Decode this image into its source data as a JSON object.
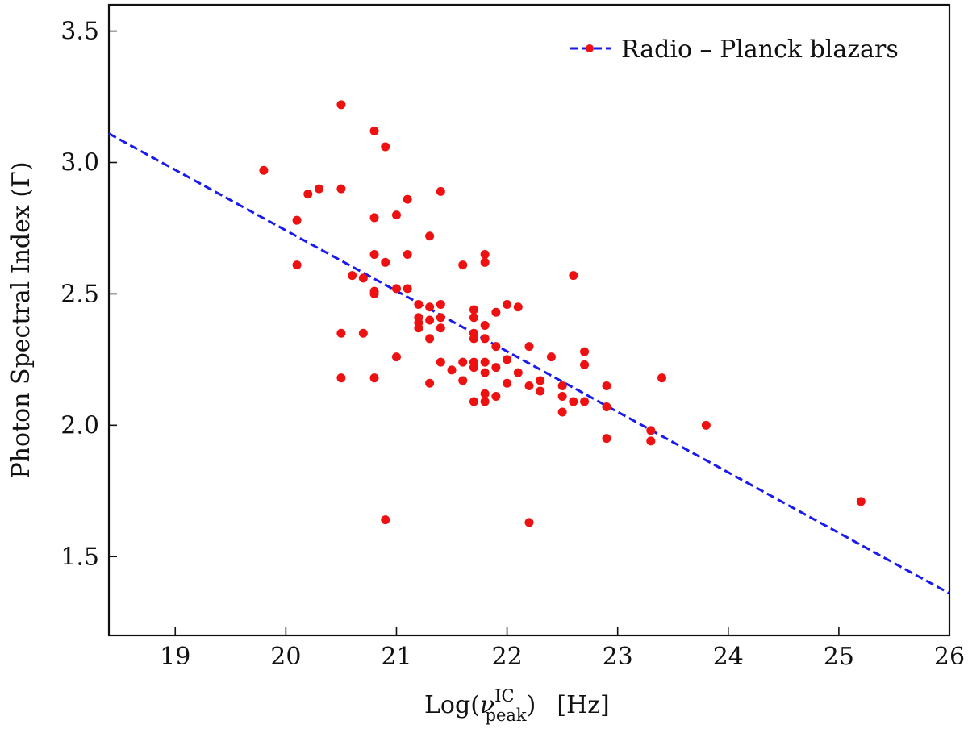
{
  "chart_data": {
    "type": "scatter",
    "title": "",
    "xlabel": {
      "base": "Log(",
      "symbol": "ν",
      "sub": "peak",
      "sup": "IC",
      "tail": ")",
      "unit": "[Hz]"
    },
    "ylabel": "Photon Spectral Index (Γ)",
    "xlim": [
      18.4,
      26
    ],
    "ylim": [
      1.2,
      3.6
    ],
    "xticks": [
      19,
      20,
      21,
      22,
      23,
      24,
      25,
      26
    ],
    "yticks": [
      1.5,
      2.0,
      2.5,
      3.0,
      3.5
    ],
    "xtick_labels": [
      "19",
      "20",
      "21",
      "22",
      "23",
      "24",
      "25",
      "26"
    ],
    "ytick_labels": [
      "1.5",
      "2.0",
      "2.5",
      "3.0",
      "3.5"
    ],
    "grid": false,
    "legend": {
      "position": "top-right",
      "label": "Radio – Planck blazars"
    },
    "colors": {
      "points": "#ee1111",
      "fit_line": "#1a1aee"
    },
    "fit_line": {
      "x": [
        18.4,
        26.0
      ],
      "y": [
        3.11,
        1.36
      ],
      "style": "dashed"
    },
    "series": [
      {
        "name": "Radio – Planck blazars",
        "points": [
          [
            19.8,
            2.97
          ],
          [
            20.1,
            2.78
          ],
          [
            20.1,
            2.61
          ],
          [
            20.2,
            2.88
          ],
          [
            20.3,
            2.9
          ],
          [
            20.5,
            3.22
          ],
          [
            20.5,
            2.9
          ],
          [
            20.5,
            2.35
          ],
          [
            20.5,
            2.18
          ],
          [
            20.6,
            2.57
          ],
          [
            20.7,
            2.56
          ],
          [
            20.7,
            2.35
          ],
          [
            20.8,
            3.12
          ],
          [
            20.8,
            2.79
          ],
          [
            20.8,
            2.65
          ],
          [
            20.8,
            2.51
          ],
          [
            20.8,
            2.5
          ],
          [
            20.8,
            2.18
          ],
          [
            20.9,
            3.06
          ],
          [
            20.9,
            2.62
          ],
          [
            20.9,
            1.64
          ],
          [
            21.0,
            2.8
          ],
          [
            21.0,
            2.52
          ],
          [
            21.0,
            2.26
          ],
          [
            21.1,
            2.86
          ],
          [
            21.1,
            2.65
          ],
          [
            21.1,
            2.52
          ],
          [
            21.2,
            2.46
          ],
          [
            21.2,
            2.41
          ],
          [
            21.2,
            2.39
          ],
          [
            21.2,
            2.37
          ],
          [
            21.3,
            2.72
          ],
          [
            21.3,
            2.45
          ],
          [
            21.3,
            2.4
          ],
          [
            21.3,
            2.33
          ],
          [
            21.3,
            2.16
          ],
          [
            21.4,
            2.89
          ],
          [
            21.4,
            2.46
          ],
          [
            21.4,
            2.41
          ],
          [
            21.4,
            2.37
          ],
          [
            21.4,
            2.24
          ],
          [
            21.5,
            2.21
          ],
          [
            21.6,
            2.61
          ],
          [
            21.6,
            2.24
          ],
          [
            21.6,
            2.17
          ],
          [
            21.7,
            2.44
          ],
          [
            21.7,
            2.41
          ],
          [
            21.7,
            2.35
          ],
          [
            21.7,
            2.33
          ],
          [
            21.7,
            2.24
          ],
          [
            21.7,
            2.22
          ],
          [
            21.7,
            2.09
          ],
          [
            21.8,
            2.65
          ],
          [
            21.8,
            2.62
          ],
          [
            21.8,
            2.38
          ],
          [
            21.8,
            2.33
          ],
          [
            21.8,
            2.24
          ],
          [
            21.8,
            2.2
          ],
          [
            21.8,
            2.12
          ],
          [
            21.8,
            2.09
          ],
          [
            21.9,
            2.43
          ],
          [
            21.9,
            2.3
          ],
          [
            21.9,
            2.22
          ],
          [
            21.9,
            2.11
          ],
          [
            22.0,
            2.46
          ],
          [
            22.0,
            2.25
          ],
          [
            22.0,
            2.16
          ],
          [
            22.1,
            2.45
          ],
          [
            22.1,
            2.2
          ],
          [
            22.2,
            2.3
          ],
          [
            22.2,
            2.15
          ],
          [
            22.2,
            1.63
          ],
          [
            22.3,
            2.17
          ],
          [
            22.3,
            2.13
          ],
          [
            22.4,
            2.26
          ],
          [
            22.5,
            2.15
          ],
          [
            22.5,
            2.11
          ],
          [
            22.5,
            2.05
          ],
          [
            22.6,
            2.57
          ],
          [
            22.6,
            2.09
          ],
          [
            22.7,
            2.28
          ],
          [
            22.7,
            2.23
          ],
          [
            22.7,
            2.09
          ],
          [
            22.9,
            2.15
          ],
          [
            22.9,
            2.07
          ],
          [
            22.9,
            1.95
          ],
          [
            23.3,
            1.98
          ],
          [
            23.3,
            1.94
          ],
          [
            23.4,
            2.18
          ],
          [
            23.8,
            2.0
          ],
          [
            25.2,
            1.71
          ]
        ]
      }
    ]
  }
}
